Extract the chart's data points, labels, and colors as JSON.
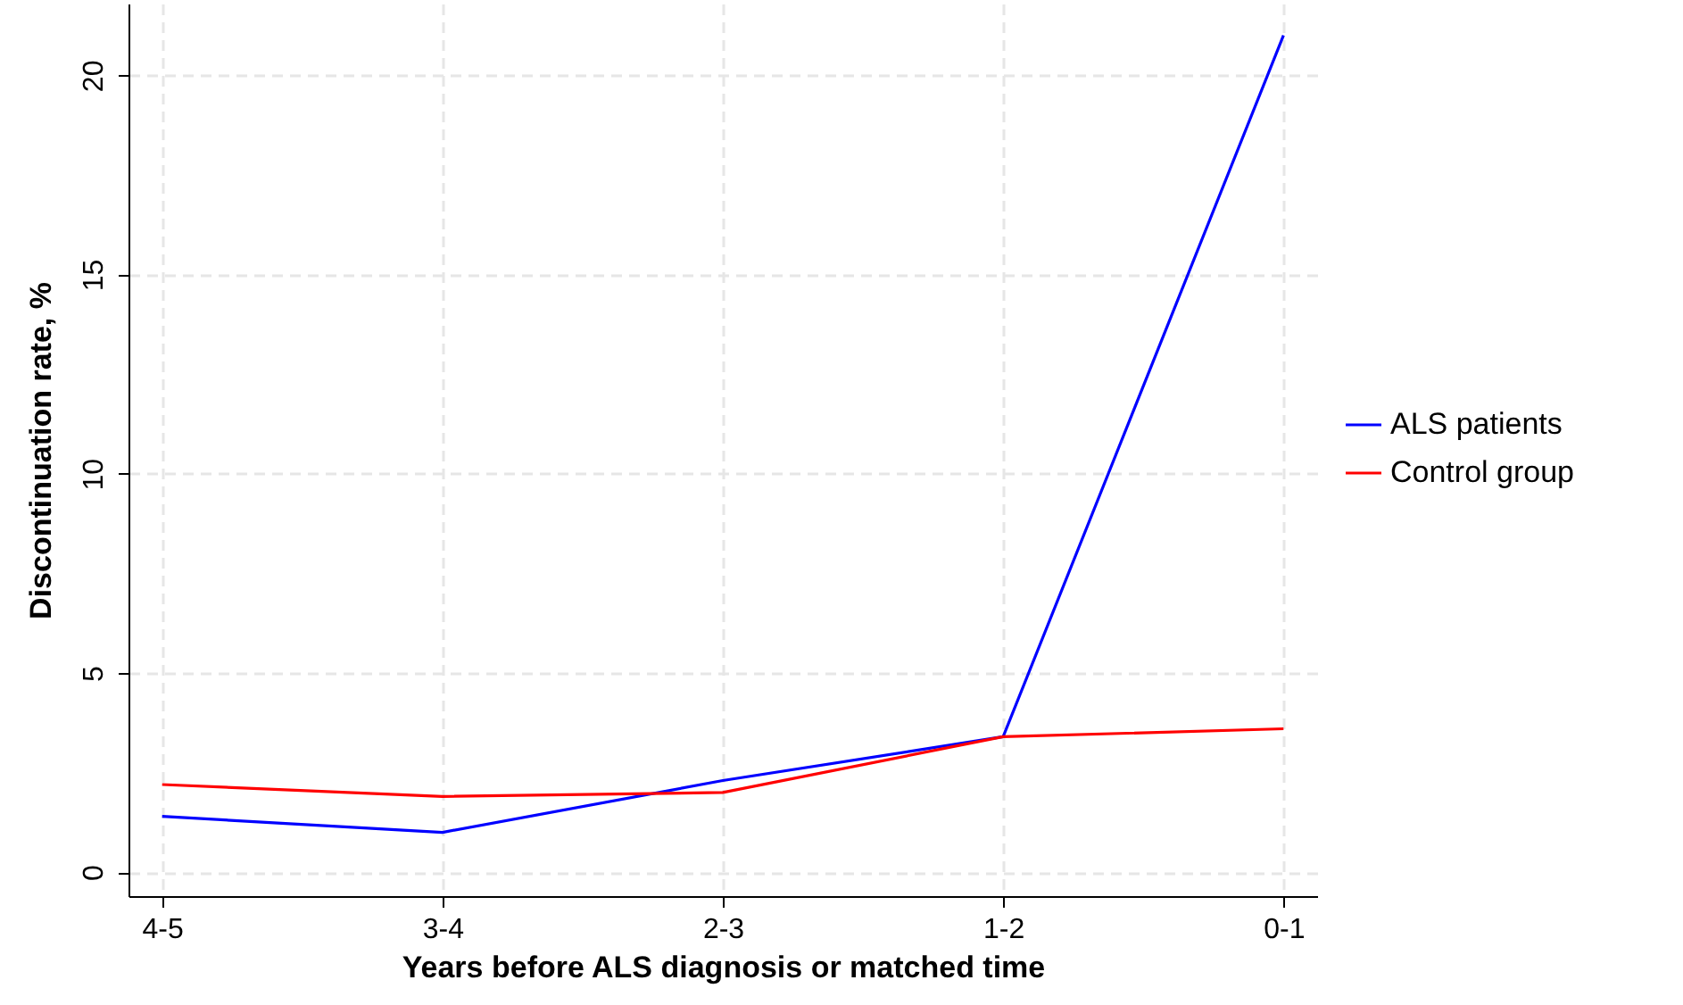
{
  "chart_data": {
    "type": "line",
    "xlabel": "Years before ALS diagnosis or matched time",
    "ylabel": "Discontinuation rate, %",
    "categories": [
      "4-5",
      "3-4",
      "2-3",
      "1-2",
      "0-1"
    ],
    "series": [
      {
        "name": "ALS patients",
        "color": "#0000ff",
        "values": [
          1.4,
          1.0,
          2.3,
          3.4,
          21.0
        ]
      },
      {
        "name": "Control group",
        "color": "#ff0000",
        "values": [
          2.2,
          1.9,
          2.0,
          3.4,
          3.6
        ]
      }
    ],
    "ylim": [
      -0.6,
      21.8
    ],
    "yticks": [
      0,
      5,
      10,
      15,
      20
    ],
    "grid": true,
    "legend": "right",
    "marker": "none",
    "line_style": "solid"
  }
}
